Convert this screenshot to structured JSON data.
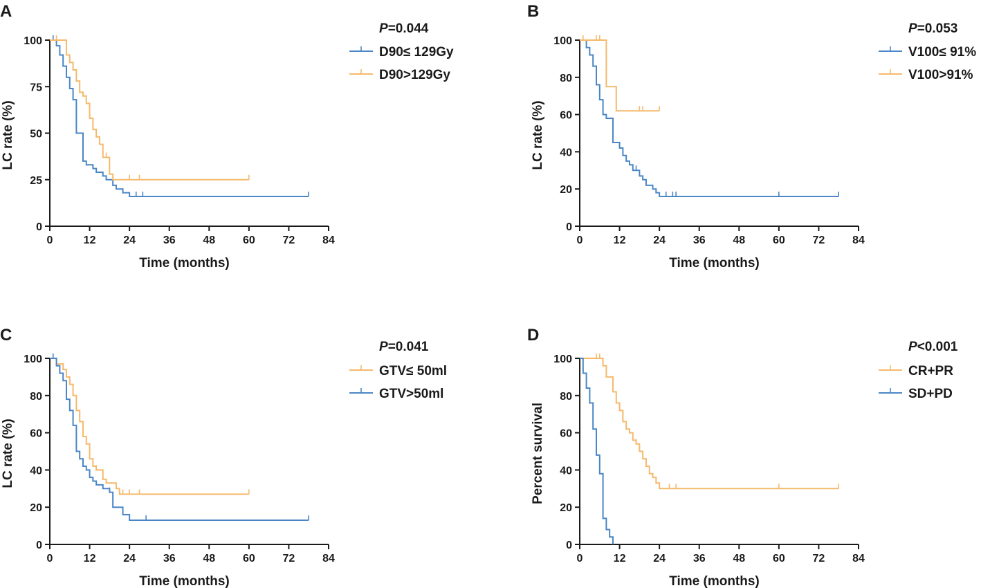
{
  "colors": {
    "blue": "#4a86c5",
    "orange": "#f5b96b",
    "axis": "#1a1a1a"
  },
  "chart_data": [
    {
      "type": "line",
      "panel": "A",
      "p_value": {
        "label": "P",
        "value": "=0.044"
      },
      "xlabel": "Time (months)",
      "ylabel": "LC rate (%)",
      "xlim": [
        0,
        84
      ],
      "ylim": [
        0,
        100
      ],
      "xticks": [
        "0",
        "12",
        "24",
        "36",
        "48",
        "60",
        "72",
        "84"
      ],
      "yticks": [
        "0",
        "25",
        "50",
        "75",
        "100"
      ],
      "legend_position": "top-right",
      "series": [
        {
          "name": "D90≤ 129Gy",
          "color": "#4a86c5",
          "x": [
            0,
            2,
            3,
            4,
            5,
            6,
            7,
            8,
            10,
            11,
            13,
            14,
            16,
            17,
            19,
            20,
            22,
            24,
            78
          ],
          "y": [
            100,
            97,
            92,
            86,
            80,
            74,
            68,
            50,
            35,
            33,
            31,
            29,
            27,
            25,
            22,
            20,
            18,
            16,
            16
          ],
          "censor_x": [
            1,
            26,
            28,
            78
          ]
        },
        {
          "name": "D90>129Gy",
          "color": "#f5b96b",
          "x": [
            0,
            5,
            6,
            7,
            8,
            9,
            10,
            11,
            12,
            13,
            14,
            15,
            16,
            18,
            19,
            60
          ],
          "y": [
            100,
            92,
            88,
            84,
            78,
            72,
            70,
            66,
            58,
            52,
            48,
            44,
            37,
            28,
            25,
            25
          ],
          "censor_x": [
            2,
            17,
            24,
            27,
            60
          ]
        }
      ]
    },
    {
      "type": "line",
      "panel": "B",
      "p_value": {
        "label": "P",
        "value": "=0.053"
      },
      "xlabel": "Time (months)",
      "ylabel": "LC rate (%)",
      "xlim": [
        0,
        84
      ],
      "ylim": [
        0,
        100
      ],
      "xticks": [
        "0",
        "12",
        "24",
        "36",
        "48",
        "60",
        "72",
        "84"
      ],
      "yticks": [
        "0",
        "20",
        "40",
        "60",
        "80",
        "100"
      ],
      "legend_position": "top-right",
      "series": [
        {
          "name": "V100≤ 91%",
          "color": "#4a86c5",
          "x": [
            0,
            2,
            3,
            4,
            5,
            6,
            7,
            8,
            10,
            12,
            13,
            14,
            15,
            16,
            18,
            19,
            20,
            22,
            23,
            24,
            78
          ],
          "y": [
            100,
            96,
            92,
            86,
            76,
            68,
            60,
            58,
            45,
            42,
            38,
            35,
            33,
            30,
            27,
            25,
            22,
            20,
            18,
            16,
            16
          ],
          "censor_x": [
            12,
            17,
            26,
            28,
            29,
            60,
            78
          ]
        },
        {
          "name": "V100>91%",
          "color": "#f5b96b",
          "x": [
            0,
            8,
            11,
            24
          ],
          "y": [
            100,
            75,
            62,
            62
          ],
          "censor_x": [
            1,
            5,
            6,
            18,
            19,
            24
          ]
        }
      ]
    },
    {
      "type": "line",
      "panel": "C",
      "p_value": {
        "label": "P",
        "value": "=0.041"
      },
      "xlabel": "Time (months)",
      "ylabel": "LC rate (%)",
      "xlim": [
        0,
        84
      ],
      "ylim": [
        0,
        100
      ],
      "xticks": [
        "0",
        "12",
        "24",
        "36",
        "48",
        "60",
        "72",
        "84"
      ],
      "yticks": [
        "0",
        "20",
        "40",
        "60",
        "80",
        "100"
      ],
      "legend_position": "top-right",
      "series": [
        {
          "name": "GTV≤ 50ml",
          "color": "#f5b96b",
          "x": [
            0,
            2,
            4,
            5,
            6,
            7,
            8,
            9,
            10,
            11,
            12,
            13,
            14,
            16,
            17,
            20,
            21,
            60
          ],
          "y": [
            100,
            97,
            94,
            90,
            86,
            80,
            72,
            66,
            58,
            54,
            46,
            42,
            40,
            35,
            33,
            30,
            27,
            27
          ],
          "censor_x": [
            14,
            22,
            24,
            27,
            60
          ]
        },
        {
          "name": "GTV>50ml",
          "color": "#4a86c5",
          "x": [
            0,
            2,
            3,
            4,
            5,
            6,
            7,
            8,
            9,
            10,
            11,
            12,
            13,
            14,
            16,
            18,
            19,
            22,
            24,
            78
          ],
          "y": [
            100,
            96,
            92,
            88,
            78,
            72,
            64,
            50,
            46,
            42,
            40,
            36,
            34,
            32,
            30,
            28,
            20,
            16,
            13,
            13
          ],
          "censor_x": [
            1,
            18,
            29,
            78
          ]
        }
      ]
    },
    {
      "type": "line",
      "panel": "D",
      "p_value": {
        "label": "P",
        "value": "<0.001"
      },
      "xlabel": "Time (months)",
      "ylabel": "Percent survival",
      "xlim": [
        0,
        84
      ],
      "ylim": [
        0,
        100
      ],
      "xticks": [
        "0",
        "12",
        "24",
        "36",
        "48",
        "60",
        "72",
        "84"
      ],
      "yticks": [
        "0",
        "20",
        "40",
        "60",
        "80",
        "100"
      ],
      "legend_position": "top-right",
      "series": [
        {
          "name": "CR+PR",
          "color": "#f5b96b",
          "x": [
            0,
            7,
            8,
            10,
            11,
            12,
            13,
            14,
            15,
            16,
            17,
            18,
            19,
            20,
            21,
            22,
            23,
            24,
            78
          ],
          "y": [
            100,
            96,
            90,
            82,
            76,
            72,
            66,
            62,
            60,
            56,
            54,
            50,
            46,
            42,
            38,
            36,
            33,
            30,
            30
          ],
          "censor_x": [
            5,
            6,
            17,
            27,
            29,
            60,
            78
          ]
        },
        {
          "name": "SD+PD",
          "color": "#4a86c5",
          "x": [
            0,
            1,
            2,
            3,
            4,
            5,
            6,
            7,
            8,
            9,
            10
          ],
          "y": [
            100,
            92,
            84,
            76,
            62,
            48,
            38,
            14,
            8,
            4,
            0
          ],
          "censor_x": [
            1
          ]
        }
      ]
    }
  ]
}
